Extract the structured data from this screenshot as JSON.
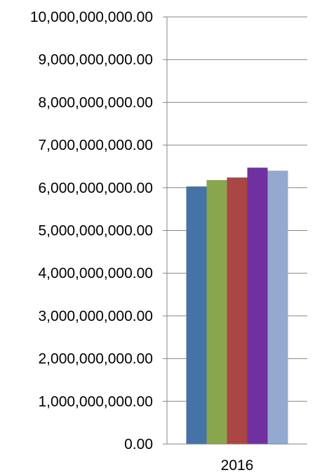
{
  "chart_data": {
    "type": "bar",
    "title": "",
    "xlabel": "",
    "ylabel": "",
    "categories": [
      "2016"
    ],
    "series": [
      {
        "values": [
          6030000000
        ],
        "color": "#4572A7"
      },
      {
        "values": [
          6180000000
        ],
        "color": "#89A54E"
      },
      {
        "values": [
          6240000000
        ],
        "color": "#AA4643"
      },
      {
        "values": [
          6470000000
        ],
        "color": "#7030A0"
      },
      {
        "values": [
          6400000000
        ],
        "color": "#93A9CF"
      }
    ],
    "ylim": [
      0,
      10000000000
    ],
    "yticks": [
      "0.00",
      "1,000,000,000.00",
      "2,000,000,000.00",
      "3,000,000,000.00",
      "4,000,000,000.00",
      "5,000,000,000.00",
      "6,000,000,000.00",
      "7,000,000,000.00",
      "8,000,000,000.00",
      "9,000,000,000.00",
      "10,000,000,000.00"
    ],
    "grid": true,
    "legend": "none"
  }
}
